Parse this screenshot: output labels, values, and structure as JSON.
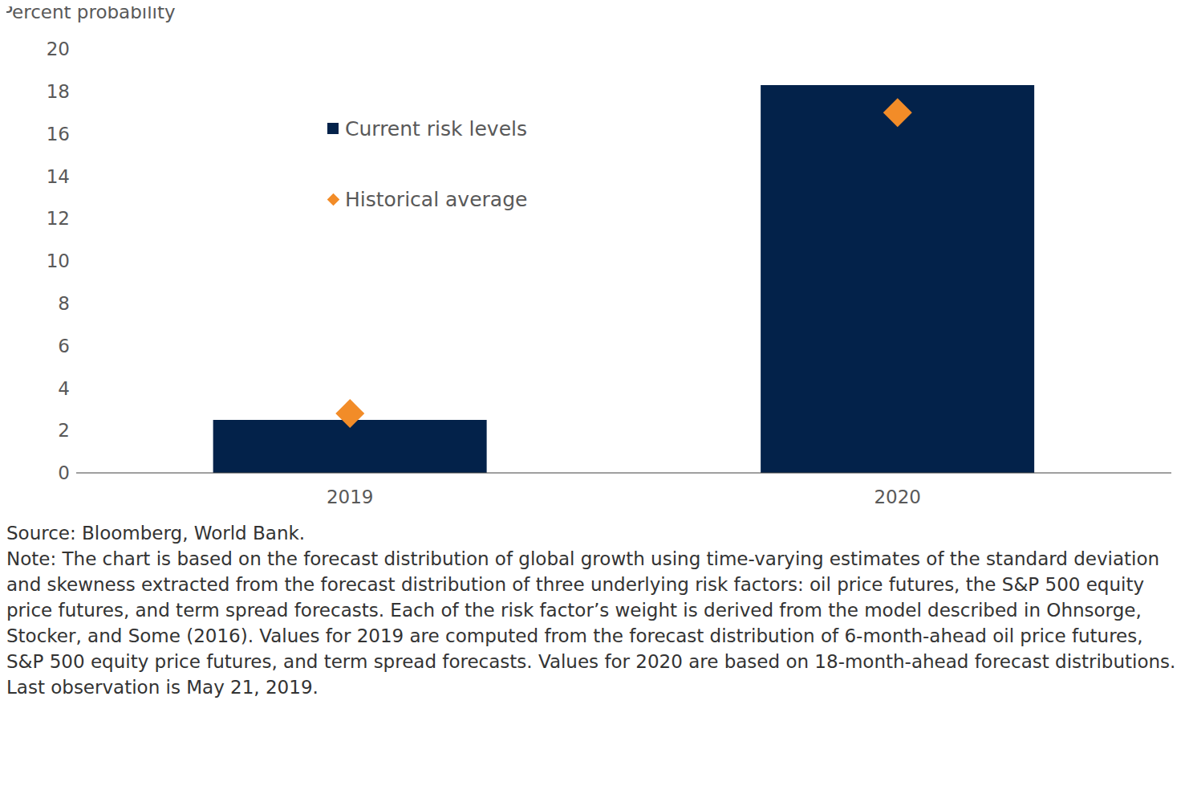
{
  "chart_data": {
    "type": "bar",
    "y_label": "Percent probability",
    "categories": [
      "2019",
      "2020"
    ],
    "series": [
      {
        "name": "Current risk levels",
        "type": "bar",
        "color": "#03224a",
        "values": [
          2.5,
          18.3
        ]
      },
      {
        "name": "Historical average",
        "type": "scatter",
        "marker": "diamond",
        "color": "#f28c28",
        "values": [
          2.8,
          17.0
        ]
      }
    ],
    "ylim": [
      0,
      20
    ],
    "yticks": [
      0,
      2,
      4,
      6,
      8,
      10,
      12,
      14,
      16,
      18,
      20
    ],
    "grid": false,
    "legend": "top",
    "source": "Source: Bloomberg, World Bank.",
    "note": "Note: The chart is based on the forecast distribution of global growth using time-varying estimates of the standard deviation and skewness extracted from the forecast distribution of three underlying risk factors: oil price futures, the S&P 500 equity price futures, and term spread forecasts. Each of the risk factor’s weight is derived from the model described in Ohnsorge, Stocker, and Some (2016). Values for 2019 are computed from the forecast distribution of 6-month-ahead oil price futures, S&P 500 equity price futures, and term spread forecasts. Values for 2020 are based on 18-month-ahead forecast distributions. Last observation is May 21, 2019."
  }
}
